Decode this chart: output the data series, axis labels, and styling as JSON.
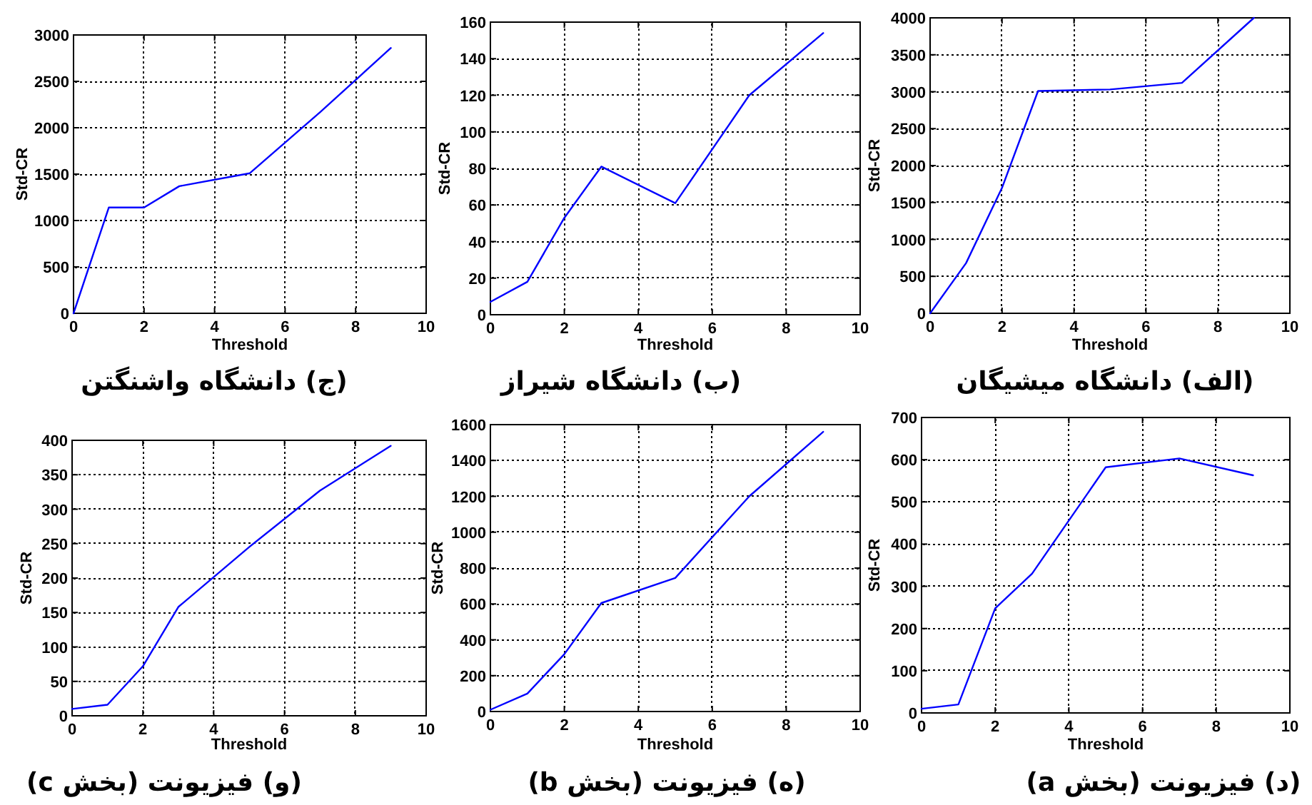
{
  "chart_data": [
    {
      "type": "line",
      "title": "(ج) دانشگاه واشنگتن",
      "xlabel": "Threshold",
      "ylabel": "Std-CR",
      "x": [
        0,
        1,
        2,
        3,
        5,
        7,
        9
      ],
      "values": [
        0,
        1140,
        1140,
        1370,
        1510,
        2170,
        2860
      ],
      "color": "#0000ff",
      "xlim": [
        0,
        10
      ],
      "xticks": [
        0,
        2,
        4,
        6,
        8,
        10
      ],
      "ylim": [
        0,
        3000
      ],
      "yticks": [
        0,
        500,
        1000,
        1500,
        2000,
        2500,
        3000
      ],
      "grid": true
    },
    {
      "type": "line",
      "title": "(ب) دانشگاه شیراز",
      "xlabel": "Threshold",
      "ylabel": "Std-CR",
      "x": [
        0,
        1,
        2,
        3,
        5,
        7,
        9
      ],
      "values": [
        7,
        18,
        53,
        81,
        61,
        120,
        154
      ],
      "color": "#0000ff",
      "xlim": [
        0,
        10
      ],
      "xticks": [
        0,
        2,
        4,
        6,
        8,
        10
      ],
      "ylim": [
        0,
        160
      ],
      "yticks": [
        0,
        20,
        40,
        60,
        80,
        100,
        120,
        140,
        160
      ],
      "grid": true
    },
    {
      "type": "line",
      "title": "(الف) دانشگاه میشیگان",
      "xlabel": "Threshold",
      "ylabel": "Std-CR",
      "x": [
        0,
        1,
        2,
        3,
        5,
        7,
        9
      ],
      "values": [
        0,
        680,
        1700,
        3010,
        3030,
        3120,
        4000
      ],
      "color": "#0000ff",
      "xlim": [
        0,
        10
      ],
      "xticks": [
        0,
        2,
        4,
        6,
        8,
        10
      ],
      "ylim": [
        0,
        4000
      ],
      "yticks": [
        0,
        500,
        1000,
        1500,
        2000,
        2500,
        3000,
        3500,
        4000
      ],
      "grid": true
    },
    {
      "type": "line",
      "title": "(و) فیزیونت (بخش c)",
      "xlabel": "Threshold",
      "ylabel": "Std-CR",
      "x": [
        0,
        1,
        2,
        3,
        5,
        7,
        9
      ],
      "values": [
        10,
        16,
        72,
        158,
        245,
        327,
        392
      ],
      "color": "#0000ff",
      "xlim": [
        0,
        10
      ],
      "xticks": [
        0,
        2,
        4,
        6,
        8,
        10
      ],
      "ylim": [
        0,
        400
      ],
      "yticks": [
        0,
        50,
        100,
        150,
        200,
        250,
        300,
        350,
        400
      ],
      "grid": true
    },
    {
      "type": "line",
      "title": "(ه) فیزیونت (بخش b)",
      "xlabel": "Threshold",
      "ylabel": "Std-CR",
      "x": [
        0,
        1,
        2,
        3,
        5,
        7,
        9
      ],
      "values": [
        10,
        100,
        320,
        605,
        745,
        1200,
        1560
      ],
      "color": "#0000ff",
      "xlim": [
        0,
        10
      ],
      "xticks": [
        0,
        2,
        4,
        6,
        8,
        10
      ],
      "ylim": [
        0,
        1600
      ],
      "yticks": [
        0,
        200,
        400,
        600,
        800,
        1000,
        1200,
        1400,
        1600
      ],
      "grid": true
    },
    {
      "type": "line",
      "title": "(د) فیزیونت (بخش a)",
      "xlabel": "Threshold",
      "ylabel": "Std-CR",
      "x": [
        0,
        1,
        2,
        3,
        5,
        7,
        9
      ],
      "values": [
        10,
        20,
        248,
        330,
        582,
        603,
        563
      ],
      "color": "#0000ff",
      "xlim": [
        0,
        10
      ],
      "xticks": [
        0,
        2,
        4,
        6,
        8,
        10
      ],
      "ylim": [
        0,
        700
      ],
      "yticks": [
        0,
        100,
        200,
        300,
        400,
        500,
        600,
        700
      ],
      "grid": true
    }
  ]
}
